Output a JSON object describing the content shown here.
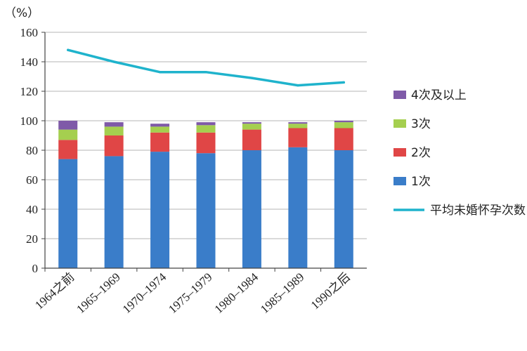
{
  "chart_data": {
    "type": "bar",
    "stacked": true,
    "unit_label": "（%）",
    "ylim": [
      0,
      160
    ],
    "yticks": [
      0,
      20,
      40,
      60,
      80,
      100,
      120,
      140,
      160
    ],
    "grid": true,
    "legend_position": "right",
    "categories": [
      "1964之前",
      "1965–1969",
      "1970–1974",
      "1975–1979",
      "1980–1984",
      "1985–1989",
      "1990之后"
    ],
    "series": [
      {
        "name": "1次",
        "color": "#3a7dc9",
        "values": [
          74,
          76,
          79,
          78,
          80,
          82,
          80
        ]
      },
      {
        "name": "2次",
        "color": "#e04646",
        "values": [
          13,
          14,
          13,
          14,
          14,
          13,
          15
        ]
      },
      {
        "name": "3次",
        "color": "#a5cf4f",
        "values": [
          7,
          6,
          4,
          5,
          4,
          3,
          4
        ]
      },
      {
        "name": "4次及以上",
        "color": "#7f5aa8",
        "values": [
          6,
          3,
          2,
          2,
          1,
          1,
          1
        ]
      }
    ],
    "line_series": {
      "name": "平均未婚怀孕次数",
      "color": "#1fb3cc",
      "values": [
        148,
        140,
        133,
        133,
        129,
        124,
        126
      ]
    },
    "legend_order": [
      "4次及以上",
      "3次",
      "2次",
      "1次",
      "平均未婚怀孕次数"
    ]
  }
}
